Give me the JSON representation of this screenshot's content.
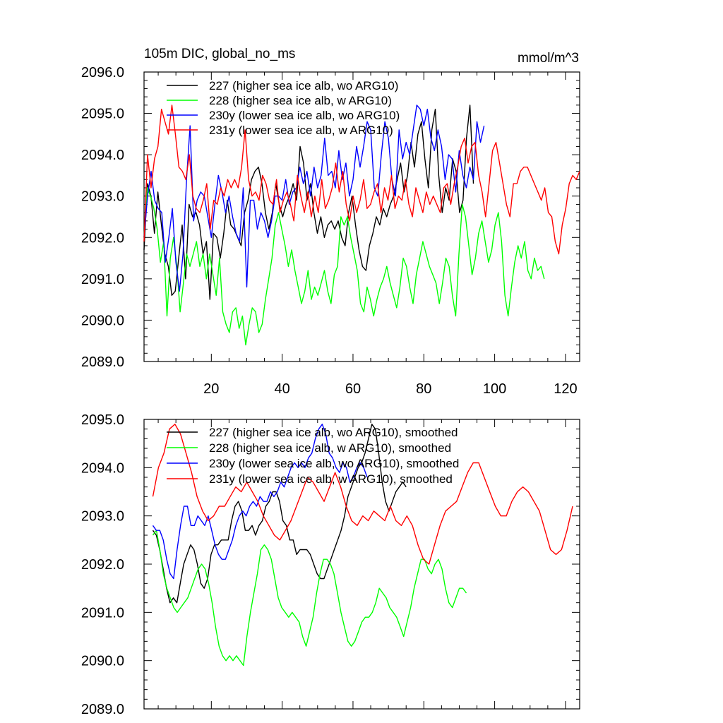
{
  "chart_data": [
    {
      "type": "line",
      "title": "105m DIC, global_no_ms",
      "units": "mmol/m^3",
      "xlim": [
        1,
        124
      ],
      "ylim": [
        2089,
        2096
      ],
      "yticks": [
        2089,
        2090,
        2091,
        2092,
        2093,
        2094,
        2095,
        2096
      ],
      "ytick_labels": [
        "2089.0",
        "2090.0",
        "2091.0",
        "2092.0",
        "2093.0",
        "2094.0",
        "2095.0",
        "2096.0"
      ],
      "xticks": [
        20,
        40,
        60,
        80,
        100,
        120
      ],
      "xtick_labels": [
        "20",
        "40",
        "60",
        "80",
        "100",
        "120"
      ],
      "series": [
        {
          "name": "227 (higher sea ice alb, wo ARG10)",
          "color": "#000000",
          "values": [
            2091.7,
            2093.3,
            2093.0,
            2092.1,
            2093.1,
            2092.3,
            2091.6,
            2091.3,
            2090.6,
            2090.7,
            2091.5,
            2092.3,
            2091.0,
            2092.8,
            2092.5,
            2092.6,
            2092.3,
            2091.6,
            2091.9,
            2090.5,
            2092.1,
            2092.0,
            2091.5,
            2092.1,
            2092.9,
            2092.3,
            2092.2,
            2092.0,
            2091.8,
            2092.6,
            2092.9,
            2093.4,
            2093.6,
            2093.7,
            2093.3,
            2092.6,
            2092.2,
            2092.6,
            2093.3,
            2092.8,
            2092.5,
            2092.8,
            2093.0,
            2093.3,
            2092.9,
            2094.2,
            2093.8,
            2092.9,
            2093.3,
            2092.6,
            2092.1,
            2092.5,
            2092.0,
            2092.3,
            2092.4,
            2092.2,
            2092.4,
            2092.0,
            2091.8,
            2092.6,
            2093.0,
            2092.3,
            2091.7,
            2091.3,
            2091.2,
            2091.8,
            2092.1,
            2092.5,
            2092.3,
            2092.7,
            2092.5,
            2092.8,
            2093.0,
            2093.4,
            2093.8,
            2093.1,
            2093.5,
            2094.3,
            2093.7,
            2094.5,
            2094.8,
            2093.9,
            2093.2,
            2094.6,
            2095.1,
            2093.5,
            2092.6,
            2093.2,
            2092.9,
            2093.9,
            2093.6,
            2092.6,
            2092.9,
            2094.4,
            2095.2,
            2093.3
          ],
          "end_x": 94
        },
        {
          "name": "228 (higher sea ice alb, w ARG10)",
          "color": "#00ff00",
          "values": [
            2092.0,
            2093.2,
            2093.0,
            2092.7,
            2092.2,
            2091.4,
            2091.9,
            2090.1,
            2091.5,
            2092.0,
            2091.3,
            2090.2,
            2090.9,
            2091.6,
            2091.3,
            2091.6,
            2091.9,
            2091.3,
            2091.6,
            2091.0,
            2091.6,
            2091.1,
            2090.6,
            2091.5,
            2090.2,
            2089.9,
            2089.7,
            2090.2,
            2090.3,
            2089.8,
            2090.1,
            2089.4,
            2089.9,
            2090.3,
            2090.2,
            2089.7,
            2089.9,
            2090.5,
            2091.0,
            2091.5,
            2092.3,
            2092.6,
            2092.2,
            2091.8,
            2091.3,
            2091.7,
            2091.2,
            2090.8,
            2090.4,
            2090.7,
            2091.2,
            2090.5,
            2090.8,
            2090.6,
            2090.9,
            2091.2,
            2090.7,
            2090.4,
            2091.1,
            2091.3,
            2092.5,
            2092.3,
            2092.5,
            2092.0,
            2091.6,
            2091.2,
            2090.4,
            2090.2,
            2090.8,
            2090.5,
            2090.1,
            2090.5,
            2090.8,
            2091.0,
            2091.3,
            2090.9,
            2090.6,
            2090.3,
            2090.8,
            2091.5,
            2091.3,
            2090.8,
            2090.4,
            2091.1,
            2091.5,
            2091.9,
            2091.6,
            2091.3,
            2091.1,
            2090.9,
            2090.4,
            2090.9,
            2091.5,
            2091.3,
            2090.6,
            2090.1,
            2091.6,
            2092.8,
            2092.5,
            2091.8,
            2091.1,
            2091.5,
            2092.1,
            2092.4,
            2091.9,
            2091.4,
            2091.7,
            2092.3,
            2092.6,
            2091.9,
            2090.6,
            2090.1,
            2090.8,
            2091.4,
            2091.8,
            2091.5,
            2091.9,
            2091.2,
            2091.0,
            2091.5,
            2091.2,
            2091.3,
            2091.0
          ],
          "end_x": 114
        },
        {
          "name": "230y (lower sea ice alb, wo ARG10)",
          "color": "#0000ff",
          "values": [
            2092.0,
            2093.0,
            2093.6,
            2092.9,
            2092.7,
            2092.6,
            2091.4,
            2092.0,
            2092.7,
            2091.4,
            2090.7,
            2091.6,
            2093.4,
            2094.7,
            2092.4,
            2092.9,
            2093.1,
            2093.0,
            2092.5,
            2092.0,
            2092.8,
            2093.5,
            2093.1,
            2092.6,
            2093.0,
            2092.5,
            2092.1,
            2091.9,
            2093.2,
            2090.8,
            2092.9,
            2092.9,
            2092.2,
            2092.6,
            2092.4,
            2092.0,
            2092.4,
            2093.0,
            2093.0,
            2092.9,
            2093.4,
            2092.8,
            2093.1,
            2093.2,
            2093.7,
            2093.3,
            2093.6,
            2093.0,
            2093.7,
            2093.2,
            2093.5,
            2094.4,
            2093.5,
            2093.6,
            2093.2,
            2094.1,
            2093.4,
            2093.8,
            2093.0,
            2093.4,
            2094.2,
            2093.7,
            2094.2,
            2094.8,
            2094.6,
            2093.2,
            2093.0,
            2094.0,
            2094.8,
            2094.4,
            2093.4,
            2093.0,
            2094.6,
            2093.9,
            2094.3,
            2094.0,
            2094.6,
            2095.2,
            2095.1,
            2094.7,
            2095.1,
            2094.4,
            2094.1,
            2094.6,
            2094.2,
            2093.4,
            2094.0,
            2093.9,
            2093.1,
            2094.1,
            2093.5,
            2093.2,
            2093.7,
            2093.4,
            2094.8,
            2094.3,
            2094.7
          ],
          "end_x": 97
        },
        {
          "name": "231y (lower sea ice alb, w ARG10)",
          "color": "#ff0000",
          "values": [
            2091.9,
            2094.0,
            2093.2,
            2093.9,
            2094.2,
            2095.1,
            2094.8,
            2094.5,
            2095.2,
            2094.5,
            2093.7,
            2093.6,
            2093.4,
            2094.0,
            2093.0,
            2092.7,
            2092.6,
            2092.9,
            2093.3,
            2092.2,
            2092.9,
            2092.8,
            2093.2,
            2093.0,
            2093.4,
            2093.2,
            2093.4,
            2093.2,
            2093.7,
            2094.6,
            2093.4,
            2093.0,
            2093.1,
            2092.9,
            2093.5,
            2093.3,
            2092.9,
            2092.8,
            2093.4,
            2092.6,
            2092.9,
            2093.1,
            2092.8,
            2092.4,
            2093.5,
            2093.0,
            2092.6,
            2093.1,
            2092.5,
            2093.0,
            2092.6,
            2093.4,
            2092.7,
            2092.9,
            2093.2,
            2093.8,
            2093.1,
            2093.6,
            2092.8,
            2092.4,
            2093.0,
            2092.6,
            2092.9,
            2093.4,
            2092.7,
            2092.8,
            2093.1,
            2093.3,
            2092.6,
            2093.2,
            2092.9,
            2093.5,
            2092.7,
            2093.0,
            2092.9,
            2093.4,
            2092.8,
            2092.5,
            2093.2,
            2092.9,
            2092.6,
            2093.1,
            2092.8,
            2093.0,
            2092.8,
            2092.6,
            2093.2,
            2093.3,
            2092.8,
            2093.3,
            2093.7,
            2094.2,
            2094.4,
            2093.8,
            2094.2,
            2094.3,
            2093.5,
            2093.1,
            2092.5,
            2093.3,
            2094.1,
            2094.3,
            2093.8,
            2093.3,
            2092.8,
            2092.5,
            2093.3,
            2093.3,
            2093.6,
            2093.7,
            2093.7,
            2093.5,
            2093.3,
            2093.1,
            2092.9,
            2093.2,
            2092.6,
            2092.5,
            2091.9,
            2091.6,
            2092.3,
            2092.7,
            2093.3,
            2093.5,
            2093.4,
            2093.6
          ],
          "end_x": 124
        }
      ]
    },
    {
      "type": "line",
      "title": "",
      "xlim": [
        1,
        124
      ],
      "ylim": [
        2089,
        2095
      ],
      "yticks": [
        2089,
        2090,
        2091,
        2092,
        2093,
        2094,
        2095
      ],
      "ytick_labels": [
        "2089.0",
        "2090.0",
        "2091.0",
        "2092.0",
        "2093.0",
        "2094.0",
        "2095.0"
      ],
      "xticks": [
        20,
        40,
        60,
        80,
        100,
        120
      ],
      "xtick_labels": [],
      "series": [
        {
          "name": "227 (higher sea ice alb, wo ARG10), smoothed",
          "color": "#000000",
          "values": [
            2092.7,
            2092.6,
            2092.3,
            2091.9,
            2091.5,
            2091.2,
            2091.3,
            2091.2,
            2091.6,
            2092.0,
            2092.2,
            2092.4,
            2092.3,
            2092.0,
            2091.6,
            2091.5,
            2091.7,
            2092.2,
            2092.4,
            2092.4,
            2092.5,
            2092.5,
            2092.5,
            2092.9,
            2093.2,
            2093.3,
            2093.1,
            2092.7,
            2092.7,
            2092.8,
            2092.6,
            2092.8,
            2092.9,
            2093.2,
            2093.3,
            2093.5,
            2093.5,
            2093.3,
            2092.9,
            2092.8,
            2092.5,
            2092.5,
            2092.2,
            2092.3,
            2092.3,
            2092.3,
            2092.2,
            2092.0,
            2091.8,
            2091.7,
            2091.7,
            2091.9,
            2092.1,
            2092.3,
            2092.5,
            2092.7,
            2093.0,
            2093.4,
            2093.6,
            2093.8,
            2094.0,
            2094.1,
            2094.3,
            2094.6,
            2094.9,
            2094.8,
            2094.3,
            2093.7,
            2093.3,
            2093.1,
            2093.3,
            2093.5,
            2093.6,
            2093.7,
            2093.6
          ],
          "start_x": 1
        },
        {
          "name": "228 (higher sea ice alb, w ARG10), smoothed",
          "color": "#00ff00",
          "values": [
            2092.6,
            2092.7,
            2092.3,
            2091.8,
            2091.5,
            2091.3,
            2091.1,
            2091.0,
            2091.1,
            2091.2,
            2091.3,
            2091.5,
            2091.7,
            2091.9,
            2092.0,
            2091.9,
            2091.6,
            2091.2,
            2090.7,
            2090.3,
            2090.1,
            2090.0,
            2090.1,
            2090.0,
            2090.1,
            2090.0,
            2089.9,
            2090.5,
            2091.0,
            2091.4,
            2091.8,
            2092.3,
            2092.4,
            2092.3,
            2092.1,
            2091.7,
            2091.3,
            2091.1,
            2091.0,
            2090.9,
            2091.0,
            2090.9,
            2090.8,
            2090.5,
            2090.3,
            2090.6,
            2090.9,
            2091.4,
            2091.8,
            2092.1,
            2092.1,
            2092.0,
            2091.8,
            2091.4,
            2091.0,
            2090.7,
            2090.4,
            2090.3,
            2090.4,
            2090.6,
            2090.8,
            2090.9,
            2090.9,
            2091.0,
            2091.2,
            2091.5,
            2091.4,
            2091.3,
            2091.1,
            2091.0,
            2090.9,
            2090.7,
            2090.5,
            2090.8,
            2091.1,
            2091.5,
            2091.8,
            2092.1,
            2092.1,
            2091.9,
            2091.8,
            2092.0,
            2092.1,
            2091.9,
            2091.5,
            2091.2,
            2091.1,
            2091.3,
            2091.5,
            2091.5,
            2091.4
          ],
          "start_x": 1
        },
        {
          "name": "230y (lower sea ice alb, wo ARG10), smoothed",
          "color": "#0000ff",
          "values": [
            2092.8,
            2092.7,
            2092.7,
            2092.5,
            2092.1,
            2091.8,
            2091.7,
            2092.3,
            2092.8,
            2093.2,
            2093.2,
            2092.8,
            2092.8,
            2093.0,
            2092.9,
            2092.8,
            2093.0,
            2092.7,
            2092.4,
            2092.2,
            2092.1,
            2092.1,
            2092.3,
            2092.5,
            2092.8,
            2093.0,
            2093.1,
            2093.0,
            2093.2,
            2093.3,
            2093.2,
            2093.4,
            2093.3,
            2093.3,
            2093.5,
            2093.4,
            2093.5,
            2093.7,
            2093.6,
            2093.8,
            2094.0,
            2094.1,
            2094.0,
            2094.1,
            2094.0,
            2094.2,
            2094.3,
            2094.6,
            2094.8,
            2094.9,
            2094.7,
            2094.3,
            2094.2,
            2094.0,
            2093.9,
            2094.1,
            2094.0,
            2093.7,
            2093.8,
            2094.0,
            2094.1,
            2094.0,
            2093.8
          ],
          "start_x": 1
        },
        {
          "name": "231y (lower sea ice alb, w ARG10), smoothed",
          "color": "#ff0000",
          "values": [
            2093.4,
            2094.0,
            2094.3,
            2094.8,
            2094.9,
            2094.7,
            2094.3,
            2093.9,
            2093.4,
            2093.1,
            2092.9,
            2093.0,
            2093.2,
            2093.2,
            2093.4,
            2093.6,
            2093.5,
            2093.7,
            2093.5,
            2093.3,
            2093.0,
            2092.8,
            2092.6,
            2092.5,
            2092.7,
            2092.9,
            2093.2,
            2093.5,
            2093.8,
            2093.7,
            2093.5,
            2093.3,
            2093.6,
            2093.9,
            2093.6,
            2093.2,
            2092.9,
            2092.8,
            2093.0,
            2092.9,
            2093.1,
            2093.0,
            2092.9,
            2093.2,
            2092.9,
            2092.8,
            2093.0,
            2092.8,
            2092.4,
            2092.1,
            2092.0,
            2092.4,
            2092.8,
            2093.1,
            2093.2,
            2093.3,
            2093.6,
            2093.9,
            2094.1,
            2094.1,
            2093.8,
            2093.5,
            2093.2,
            2093.0,
            2093.0,
            2093.3,
            2093.5,
            2093.6,
            2093.5,
            2093.3,
            2093.1,
            2092.7,
            2092.3,
            2092.2,
            2092.3,
            2092.7,
            2093.2
          ],
          "start_x": 1
        }
      ]
    }
  ]
}
